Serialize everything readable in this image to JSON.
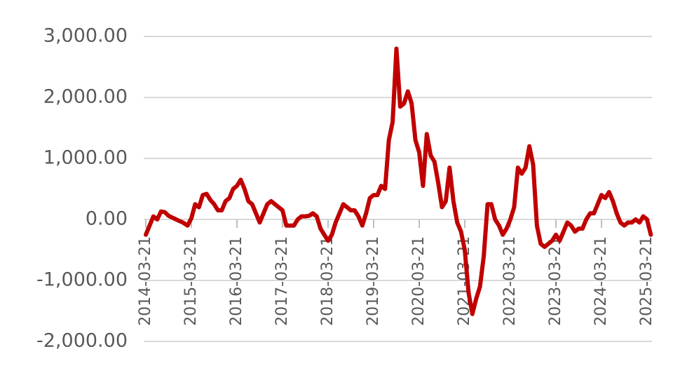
{
  "chart_data": {
    "type": "line",
    "categories": [
      "2014-03-21",
      null,
      null,
      null,
      null,
      null,
      null,
      null,
      null,
      null,
      null,
      null,
      "2015-03-21",
      null,
      null,
      null,
      null,
      null,
      null,
      null,
      null,
      null,
      null,
      null,
      "2016-03-21",
      null,
      null,
      null,
      null,
      null,
      null,
      null,
      null,
      null,
      null,
      null,
      "2017-03-21",
      null,
      null,
      null,
      null,
      null,
      null,
      null,
      null,
      null,
      null,
      null,
      "2018-03-21",
      null,
      null,
      null,
      null,
      null,
      null,
      null,
      null,
      null,
      null,
      null,
      "2019-03-21",
      null,
      null,
      null,
      null,
      null,
      null,
      null,
      null,
      null,
      null,
      null,
      "2020-03-21",
      null,
      null,
      null,
      null,
      null,
      null,
      null,
      null,
      null,
      null,
      null,
      "2021-03-21",
      null,
      null,
      null,
      null,
      null,
      null,
      null,
      null,
      null,
      null,
      null,
      "2022-03-21",
      null,
      null,
      null,
      null,
      null,
      null,
      null,
      null,
      null,
      null,
      null,
      "2023-03-21",
      null,
      null,
      null,
      null,
      null,
      null,
      null,
      null,
      null,
      null,
      null,
      "2024-03-21",
      null,
      null,
      null,
      null,
      null,
      null,
      null,
      null,
      null,
      null,
      null,
      "2025-03-21",
      null
    ],
    "values": [
      -250,
      -100,
      50,
      0,
      130,
      120,
      60,
      30,
      0,
      -30,
      -60,
      -100,
      20,
      250,
      200,
      400,
      420,
      320,
      250,
      150,
      150,
      300,
      350,
      500,
      550,
      650,
      500,
      300,
      250,
      100,
      -50,
      100,
      250,
      300,
      250,
      200,
      150,
      -100,
      -100,
      -100,
      0,
      50,
      50,
      60,
      100,
      50,
      -150,
      -250,
      -350,
      -250,
      -50,
      100,
      250,
      200,
      150,
      150,
      50,
      -100,
      100,
      350,
      400,
      400,
      550,
      500,
      1300,
      1600,
      2800,
      1850,
      1900,
      2100,
      1900,
      1300,
      1100,
      550,
      1400,
      1050,
      950,
      600,
      200,
      300,
      850,
      300,
      -50,
      -200,
      -500,
      -1200,
      -1550,
      -1300,
      -1100,
      -600,
      250,
      250,
      0,
      -100,
      -250,
      -150,
      0,
      200,
      850,
      750,
      850,
      1200,
      900,
      -100,
      -400,
      -450,
      -400,
      -350,
      -250,
      -350,
      -200,
      -50,
      -100,
      -200,
      -150,
      -150,
      0,
      100,
      100,
      250,
      400,
      350,
      450,
      300,
      100,
      -50,
      -100,
      -50,
      -50,
      0,
      -50,
      50,
      0,
      -250
    ],
    "color": "#c00000",
    "ylim": [
      -2000,
      3000
    ],
    "yticks": [
      {
        "value": -2000,
        "label": "-2,000.00"
      },
      {
        "value": -1000,
        "label": "-1,000.00"
      },
      {
        "value": 0,
        "label": "0.00"
      },
      {
        "value": 1000,
        "label": "1,000.00"
      },
      {
        "value": 2000,
        "label": "2,000.00"
      },
      {
        "value": 3000,
        "label": "3,000.00"
      }
    ],
    "grid": true
  }
}
